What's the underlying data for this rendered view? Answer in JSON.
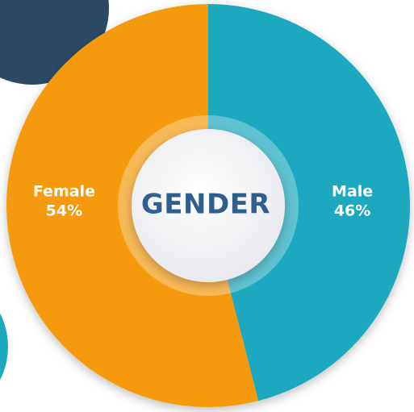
{
  "chart_data": {
    "type": "donut",
    "title": "GENDER",
    "categories": [
      "Male",
      "Female"
    ],
    "values": [
      46,
      54
    ],
    "value_labels": [
      "46%",
      "54%"
    ],
    "colors": [
      "#1aa9bf",
      "#f59a0c"
    ]
  }
}
